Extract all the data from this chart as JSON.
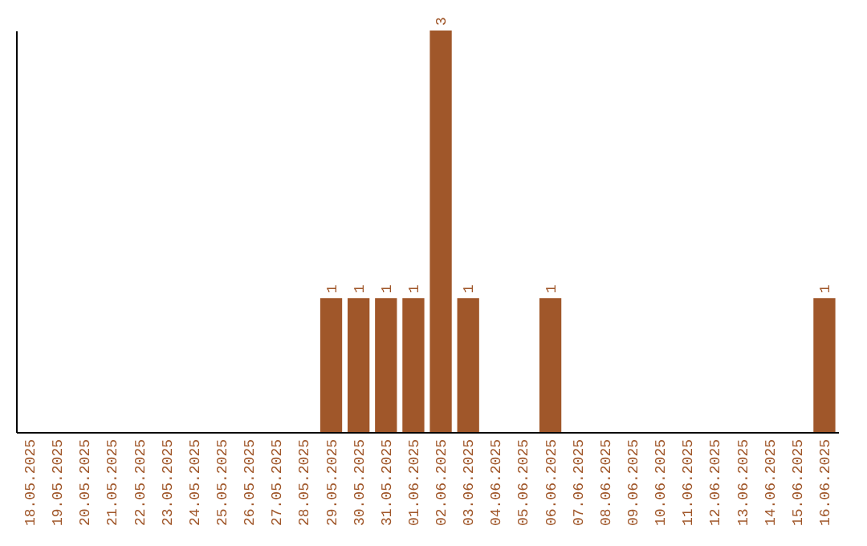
{
  "chart_data": {
    "type": "bar",
    "categories": [
      "18.05.2025",
      "19.05.2025",
      "20.05.2025",
      "21.05.2025",
      "22.05.2025",
      "23.05.2025",
      "24.05.2025",
      "25.05.2025",
      "26.05.2025",
      "27.05.2025",
      "28.05.2025",
      "29.05.2025",
      "30.05.2025",
      "31.05.2025",
      "01.06.2025",
      "02.06.2025",
      "03.06.2025",
      "04.06.2025",
      "05.06.2025",
      "06.06.2025",
      "07.06.2025",
      "08.06.2025",
      "09.06.2025",
      "10.06.2025",
      "11.06.2025",
      "12.06.2025",
      "13.06.2025",
      "14.06.2025",
      "15.06.2025",
      "16.06.2025"
    ],
    "values": [
      0,
      0,
      0,
      0,
      0,
      0,
      0,
      0,
      0,
      0,
      0,
      1,
      1,
      1,
      1,
      3,
      1,
      0,
      0,
      1,
      0,
      0,
      0,
      0,
      0,
      0,
      0,
      0,
      0,
      1
    ],
    "value_labels": [
      null,
      null,
      null,
      null,
      null,
      null,
      null,
      null,
      null,
      null,
      null,
      "1",
      "1",
      "1",
      "1",
      "3",
      "1",
      null,
      null,
      "1",
      null,
      null,
      null,
      null,
      null,
      null,
      null,
      null,
      null,
      "1"
    ],
    "color": "#a0572a",
    "grid": false,
    "tick_labels": "x"
  }
}
